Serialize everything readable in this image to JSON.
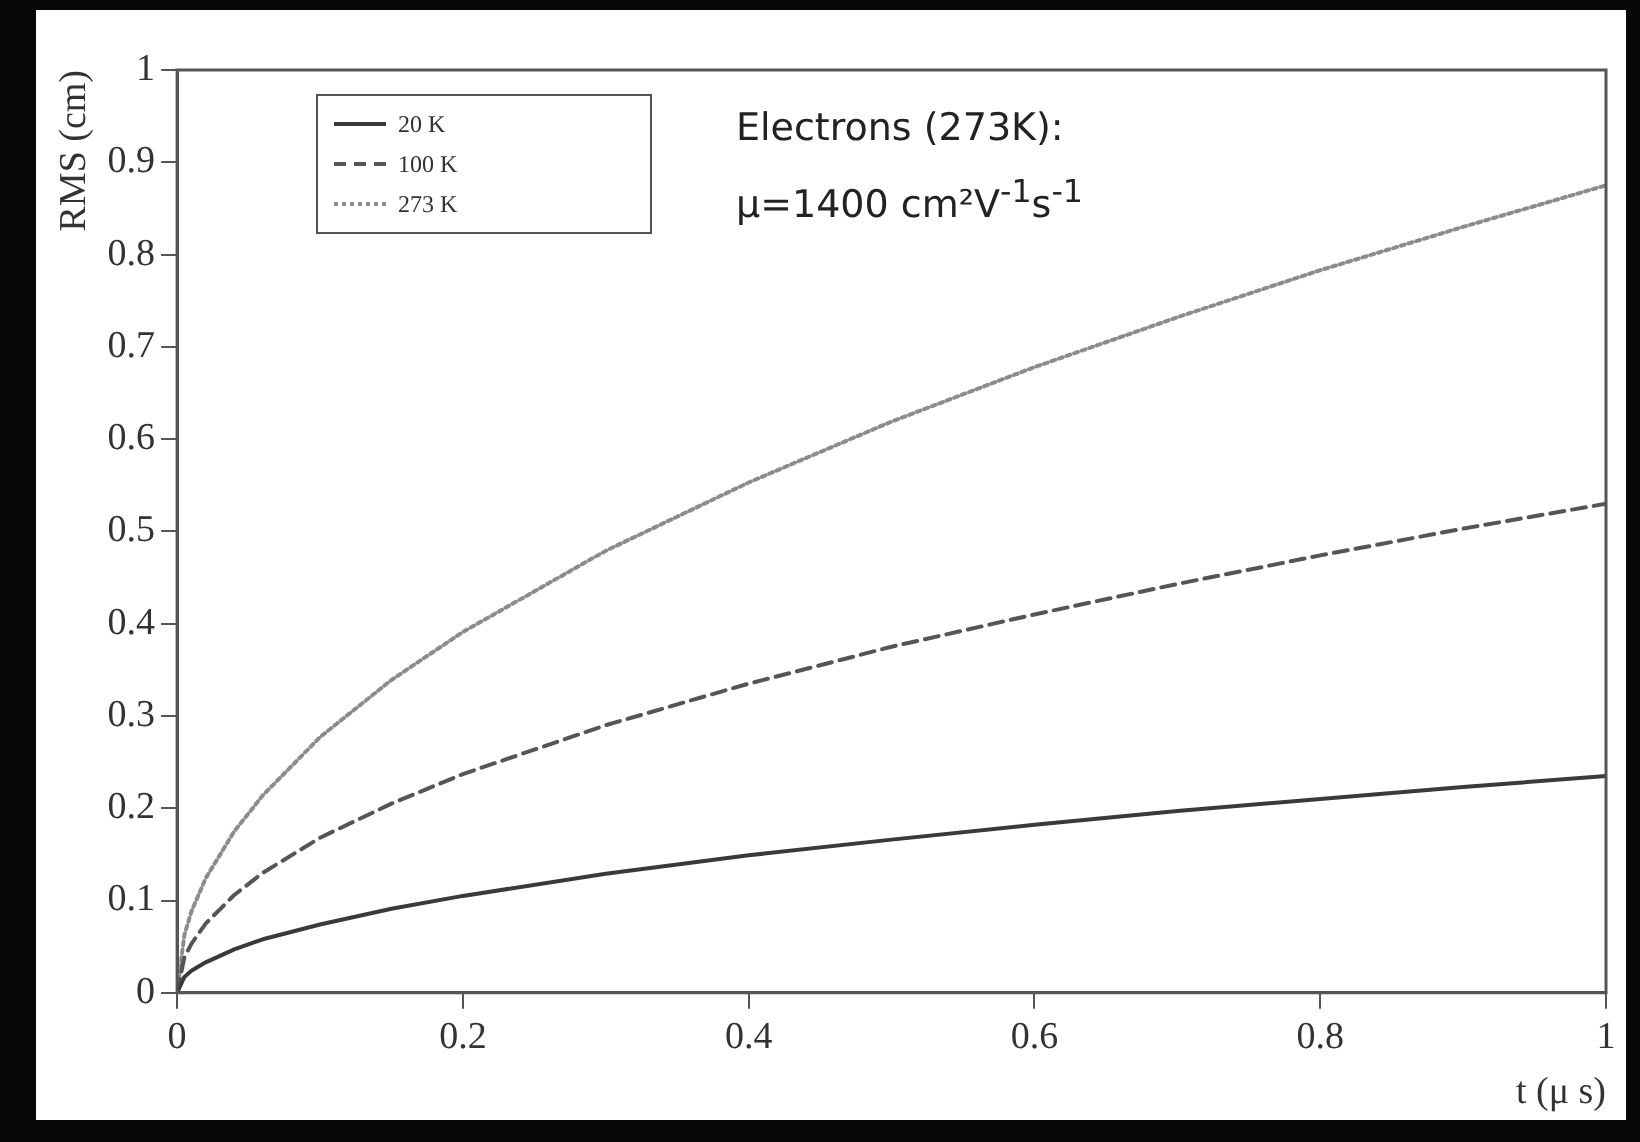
{
  "chart_data": {
    "type": "line",
    "xlabel": "t (μ s)",
    "ylabel": "RMS (cm)",
    "annotations": [
      "Electrons (273K):",
      "μ=1400 cm²V$^{-1}$s$^{-1}$"
    ],
    "x": [
      0,
      0.005,
      0.01,
      0.02,
      0.04,
      0.06,
      0.1,
      0.15,
      0.2,
      0.3,
      0.4,
      0.5,
      0.6,
      0.7,
      0.8,
      0.9,
      1
    ],
    "series": [
      {
        "name": "20 K",
        "color": "#3a3a3a",
        "line_style": "solid",
        "values": [
          0,
          0.017,
          0.024,
          0.033,
          0.047,
          0.058,
          0.074,
          0.091,
          0.105,
          0.129,
          0.149,
          0.166,
          0.182,
          0.197,
          0.21,
          0.223,
          0.235
        ]
      },
      {
        "name": "100 K",
        "color": "#555555",
        "line_style": "dashed",
        "values": [
          0,
          0.038,
          0.053,
          0.075,
          0.106,
          0.13,
          0.168,
          0.205,
          0.237,
          0.29,
          0.335,
          0.375,
          0.41,
          0.443,
          0.474,
          0.503,
          0.53
        ]
      },
      {
        "name": "273 K",
        "color": "#8c8c8c",
        "line_style": "dotted",
        "values": [
          0,
          0.062,
          0.088,
          0.124,
          0.175,
          0.214,
          0.277,
          0.339,
          0.391,
          0.479,
          0.553,
          0.619,
          0.678,
          0.732,
          0.783,
          0.83,
          0.875
        ]
      }
    ],
    "xlim": [
      0,
      1
    ],
    "xticks": [
      0,
      0.2,
      0.4,
      0.6,
      0.8,
      1
    ],
    "ylim": [
      0,
      1
    ],
    "yticks": [
      0,
      0.1,
      0.2,
      0.3,
      0.4,
      0.5,
      0.6,
      0.7,
      0.8,
      0.9,
      1
    ],
    "grid": false,
    "legend": "top left",
    "marker": "none"
  }
}
